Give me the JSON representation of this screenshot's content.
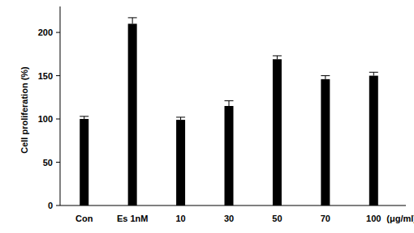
{
  "chart_data": {
    "type": "bar",
    "y_label": "Cell proliferation (%)",
    "x_label": "(μg/ml)",
    "categories": [
      "Con",
      "Es 1nM",
      "10",
      "30",
      "50",
      "70",
      "100"
    ],
    "values": [
      100,
      210,
      99,
      115,
      169,
      146,
      150
    ],
    "errors": [
      3,
      7,
      3,
      6,
      4,
      4,
      4
    ],
    "color": "#000000",
    "ylim": [
      0,
      230
    ],
    "yticks": [
      0,
      50,
      100,
      150,
      200
    ],
    "grid": false
  }
}
